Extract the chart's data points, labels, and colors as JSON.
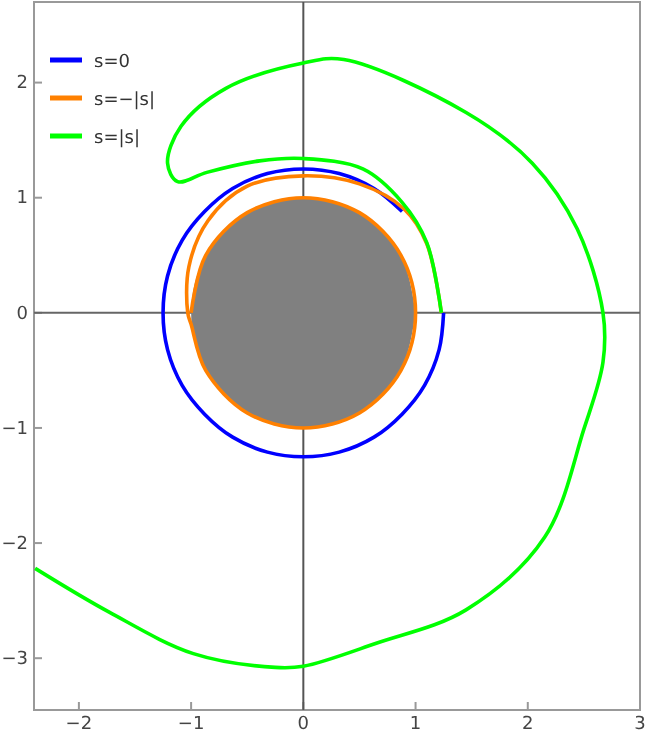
{
  "chart_data": {
    "type": "line",
    "xlim": [
      -2.4,
      3
    ],
    "ylim": [
      -3.45,
      2.7
    ],
    "xticks": [
      -2,
      -1,
      0,
      1,
      2,
      3
    ],
    "yticks": [
      -3,
      -2,
      -1,
      0,
      1,
      2
    ],
    "grid": false,
    "legend": "top left",
    "marker": "none",
    "line_style": "solid",
    "ref_lines": [
      {
        "axis": "x",
        "value": 0,
        "color": "#555555"
      },
      {
        "axis": "y",
        "value": 0,
        "color": "#666666"
      }
    ],
    "series": [
      {
        "type": "area",
        "color": "#808080",
        "x": [
          1,
          0.87,
          0.5,
          0,
          -0.5,
          -0.87,
          -1,
          -0.87,
          -0.5,
          0,
          0.5,
          0.87,
          1
        ],
        "values": [
          0,
          0.5,
          0.87,
          1,
          0.87,
          0.5,
          0,
          -0.5,
          -0.87,
          -1,
          -0.87,
          -0.5,
          0
        ]
      },
      {
        "name": "s=0",
        "color": "#0000ff",
        "x": [
          0.88,
          0.63,
          0.32,
          0,
          -0.32,
          -0.63,
          -0.88,
          -1.08,
          -1.21,
          -1.25,
          -1.21,
          -1.08,
          -0.88,
          -0.63,
          -0.32,
          0,
          0.32,
          0.63,
          0.88,
          1.08,
          1.21,
          1.25
        ],
        "values": [
          0.88,
          1.08,
          1.21,
          1.25,
          1.21,
          1.08,
          0.88,
          0.63,
          0.32,
          0,
          -0.32,
          -0.63,
          -0.88,
          -1.08,
          -1.21,
          -1.25,
          -1.21,
          -1.08,
          -0.88,
          -0.63,
          -0.32,
          0
        ]
      },
      {
        "name": "s=−|s|",
        "color": "#ff8000",
        "x": [
          1.23,
          1.1,
          0.9,
          0.5,
          0,
          -0.5,
          -0.85,
          -1.02,
          -1.03,
          -1,
          -0.87,
          -0.5,
          0,
          0.5,
          0.87,
          1,
          0.87,
          0.5,
          0,
          -0.5,
          -0.87,
          -1
        ],
        "values": [
          0,
          0.6,
          0.9,
          1.12,
          1.19,
          1.1,
          0.8,
          0.4,
          0,
          -0.1,
          -0.5,
          -0.87,
          -1,
          -0.87,
          -0.5,
          0,
          0.5,
          0.87,
          1,
          0.87,
          0.5,
          0
        ]
      },
      {
        "name": "s=|s|",
        "color": "#00ff00",
        "x": [
          1.23,
          1.1,
          0.88,
          0.53,
          0,
          -0.39,
          -0.86,
          -1.12,
          -1.21,
          -1.09,
          -0.69,
          0,
          0.36,
          1.45,
          2.04,
          2.44,
          2.67,
          2.67,
          2.5,
          2.15,
          1.45,
          0.65,
          0,
          -0.25,
          -0.98,
          -1.73,
          -2.39
        ],
        "values": [
          0,
          0.61,
          0.96,
          1.25,
          1.34,
          1.32,
          1.22,
          1.14,
          1.3,
          1.62,
          1.95,
          2.17,
          2.2,
          1.74,
          1.3,
          0.73,
          0,
          -0.43,
          -1.01,
          -1.95,
          -2.58,
          -2.87,
          -3.07,
          -3.08,
          -2.96,
          -2.6,
          -2.22
        ]
      }
    ]
  }
}
